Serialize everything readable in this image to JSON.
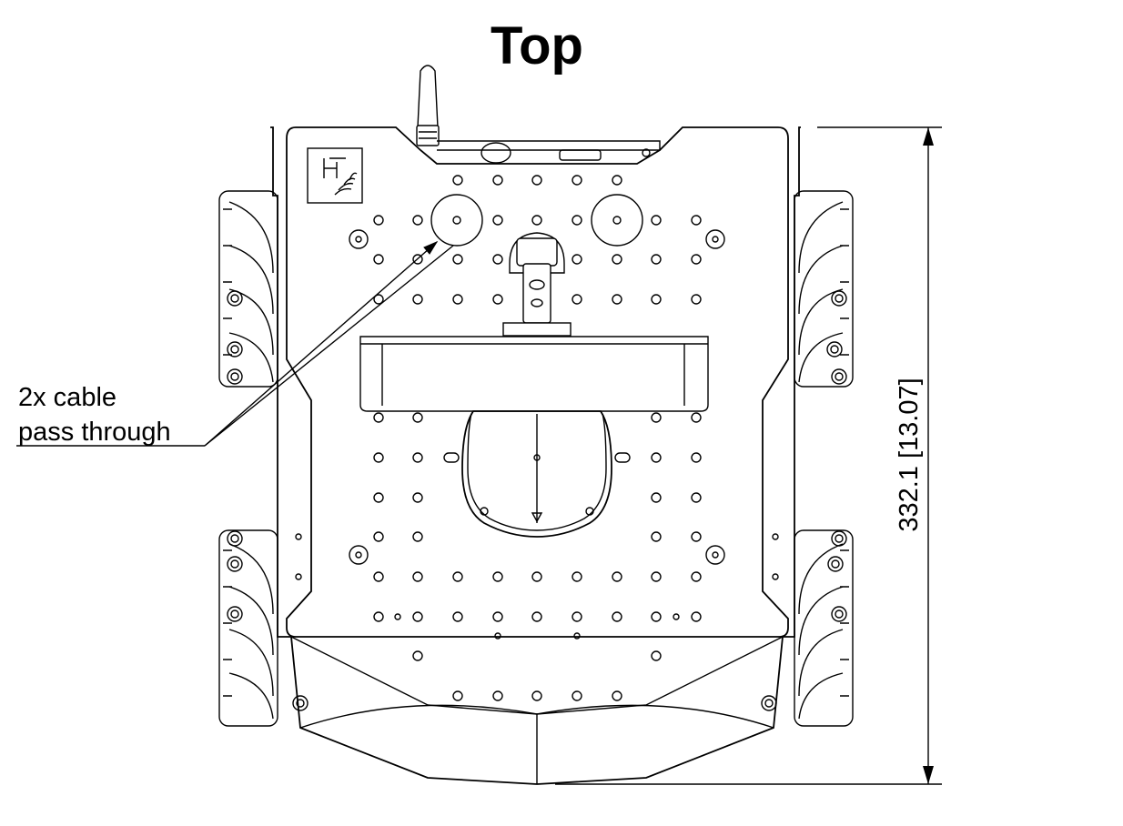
{
  "title": "Top",
  "callout": {
    "line1": "2x cable",
    "line2": "pass through"
  },
  "dimension": {
    "label": "332.1 [13.07]"
  }
}
